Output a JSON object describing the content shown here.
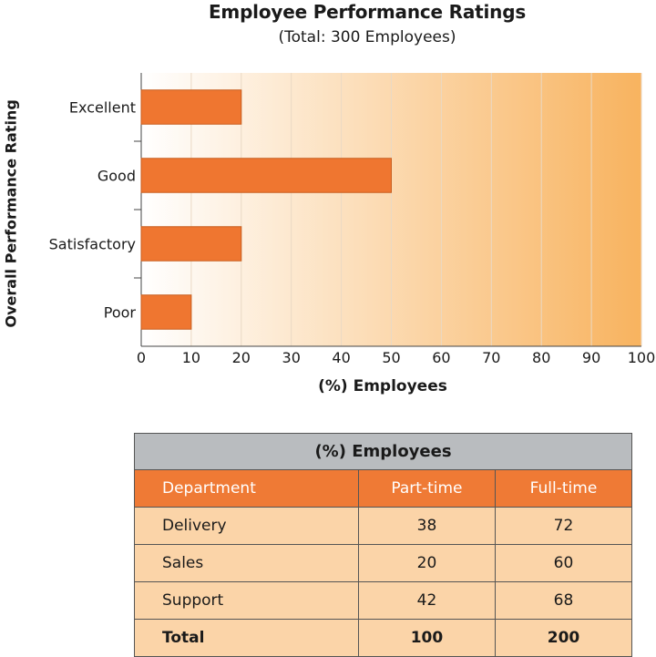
{
  "chart_data": {
    "type": "bar",
    "orientation": "horizontal",
    "title": "Employee Performance Ratings",
    "subtitle": "(Total: 300 Employees)",
    "categories": [
      "Excellent",
      "Good",
      "Satisfactory",
      "Poor"
    ],
    "values": [
      20,
      50,
      20,
      10
    ],
    "xlabel": "(%) Employees",
    "ylabel": "Overall Performance Rating",
    "xlim": [
      0,
      100
    ],
    "xticks": [
      0,
      10,
      20,
      30,
      40,
      50,
      60,
      70,
      80,
      90,
      100
    ],
    "grid": true
  },
  "colors": {
    "bar": "#ef7630",
    "bar_edge": "#c85e1f",
    "gradient_start": "#ffffff",
    "gradient_end": "#f8b35f",
    "table_header": "#ef7a35",
    "table_caption": "#b9bcbf",
    "table_body": "#fbd4a8"
  },
  "table": {
    "caption": "(%) Employees",
    "headers": [
      "Department",
      "Part-time",
      "Full-time"
    ],
    "rows": [
      [
        "Delivery",
        "38",
        "72"
      ],
      [
        "Sales",
        "20",
        "60"
      ],
      [
        "Support",
        "42",
        "68"
      ]
    ],
    "total": [
      "Total",
      "100",
      "200"
    ]
  }
}
